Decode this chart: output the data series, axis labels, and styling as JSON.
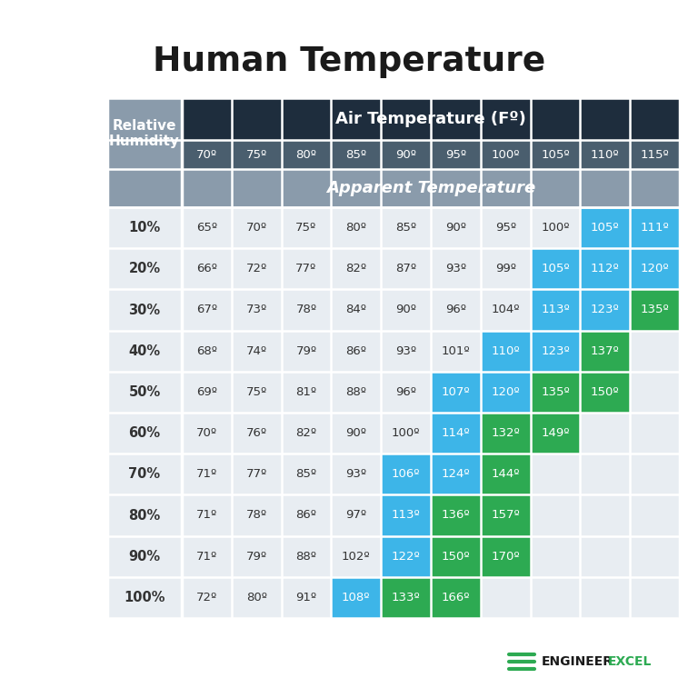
{
  "title": "Human Temperature",
  "col_header_bg": "#1e2d3d",
  "col_header_text": "#ffffff",
  "col_header_label": "Air Temperature (Fº)",
  "row_header_bg": "#8a9bab",
  "row_header_text": "#ffffff",
  "row_header_label": "Relative\nHumidity",
  "subheader_bg": "#8a9bab",
  "subheader_text": "#ffffff",
  "subheader_label": "Apparent Temperature",
  "air_temp_row_bg": "#4a5e6e",
  "air_temps": [
    "70º",
    "75º",
    "80º",
    "85º",
    "90º",
    "95º",
    "100º",
    "105º",
    "110º",
    "115º"
  ],
  "humidities": [
    "10%",
    "20%",
    "30%",
    "40%",
    "50%",
    "60%",
    "70%",
    "80%",
    "90%",
    "100%"
  ],
  "table_data": [
    [
      65,
      70,
      75,
      80,
      85,
      90,
      95,
      100,
      105,
      111
    ],
    [
      66,
      72,
      77,
      82,
      87,
      93,
      99,
      105,
      112,
      120
    ],
    [
      67,
      73,
      78,
      84,
      90,
      96,
      104,
      113,
      123,
      135
    ],
    [
      68,
      74,
      79,
      86,
      93,
      101,
      110,
      123,
      137,
      null
    ],
    [
      69,
      75,
      81,
      88,
      96,
      107,
      120,
      135,
      150,
      null
    ],
    [
      70,
      76,
      82,
      90,
      100,
      114,
      132,
      149,
      null,
      null
    ],
    [
      71,
      77,
      85,
      93,
      106,
      124,
      144,
      null,
      null,
      null
    ],
    [
      71,
      78,
      86,
      97,
      113,
      136,
      157,
      null,
      null,
      null
    ],
    [
      71,
      79,
      88,
      102,
      122,
      150,
      170,
      null,
      null,
      null
    ],
    [
      72,
      80,
      91,
      108,
      133,
      166,
      null,
      null,
      null,
      null
    ]
  ],
  "blue_color": "#3db5e8",
  "green_color": "#2daa52",
  "bg_color": "#ffffff",
  "cell_bg": "#e8edf2",
  "humidity_label_bg": "#e8edf2",
  "grid_color": "#ffffff",
  "text_dark": "#333333",
  "text_white": "#ffffff",
  "blue_threshold": 105,
  "green_threshold": 130,
  "logo_color": "#2daa52",
  "logo_dark": "#1a1a1a"
}
